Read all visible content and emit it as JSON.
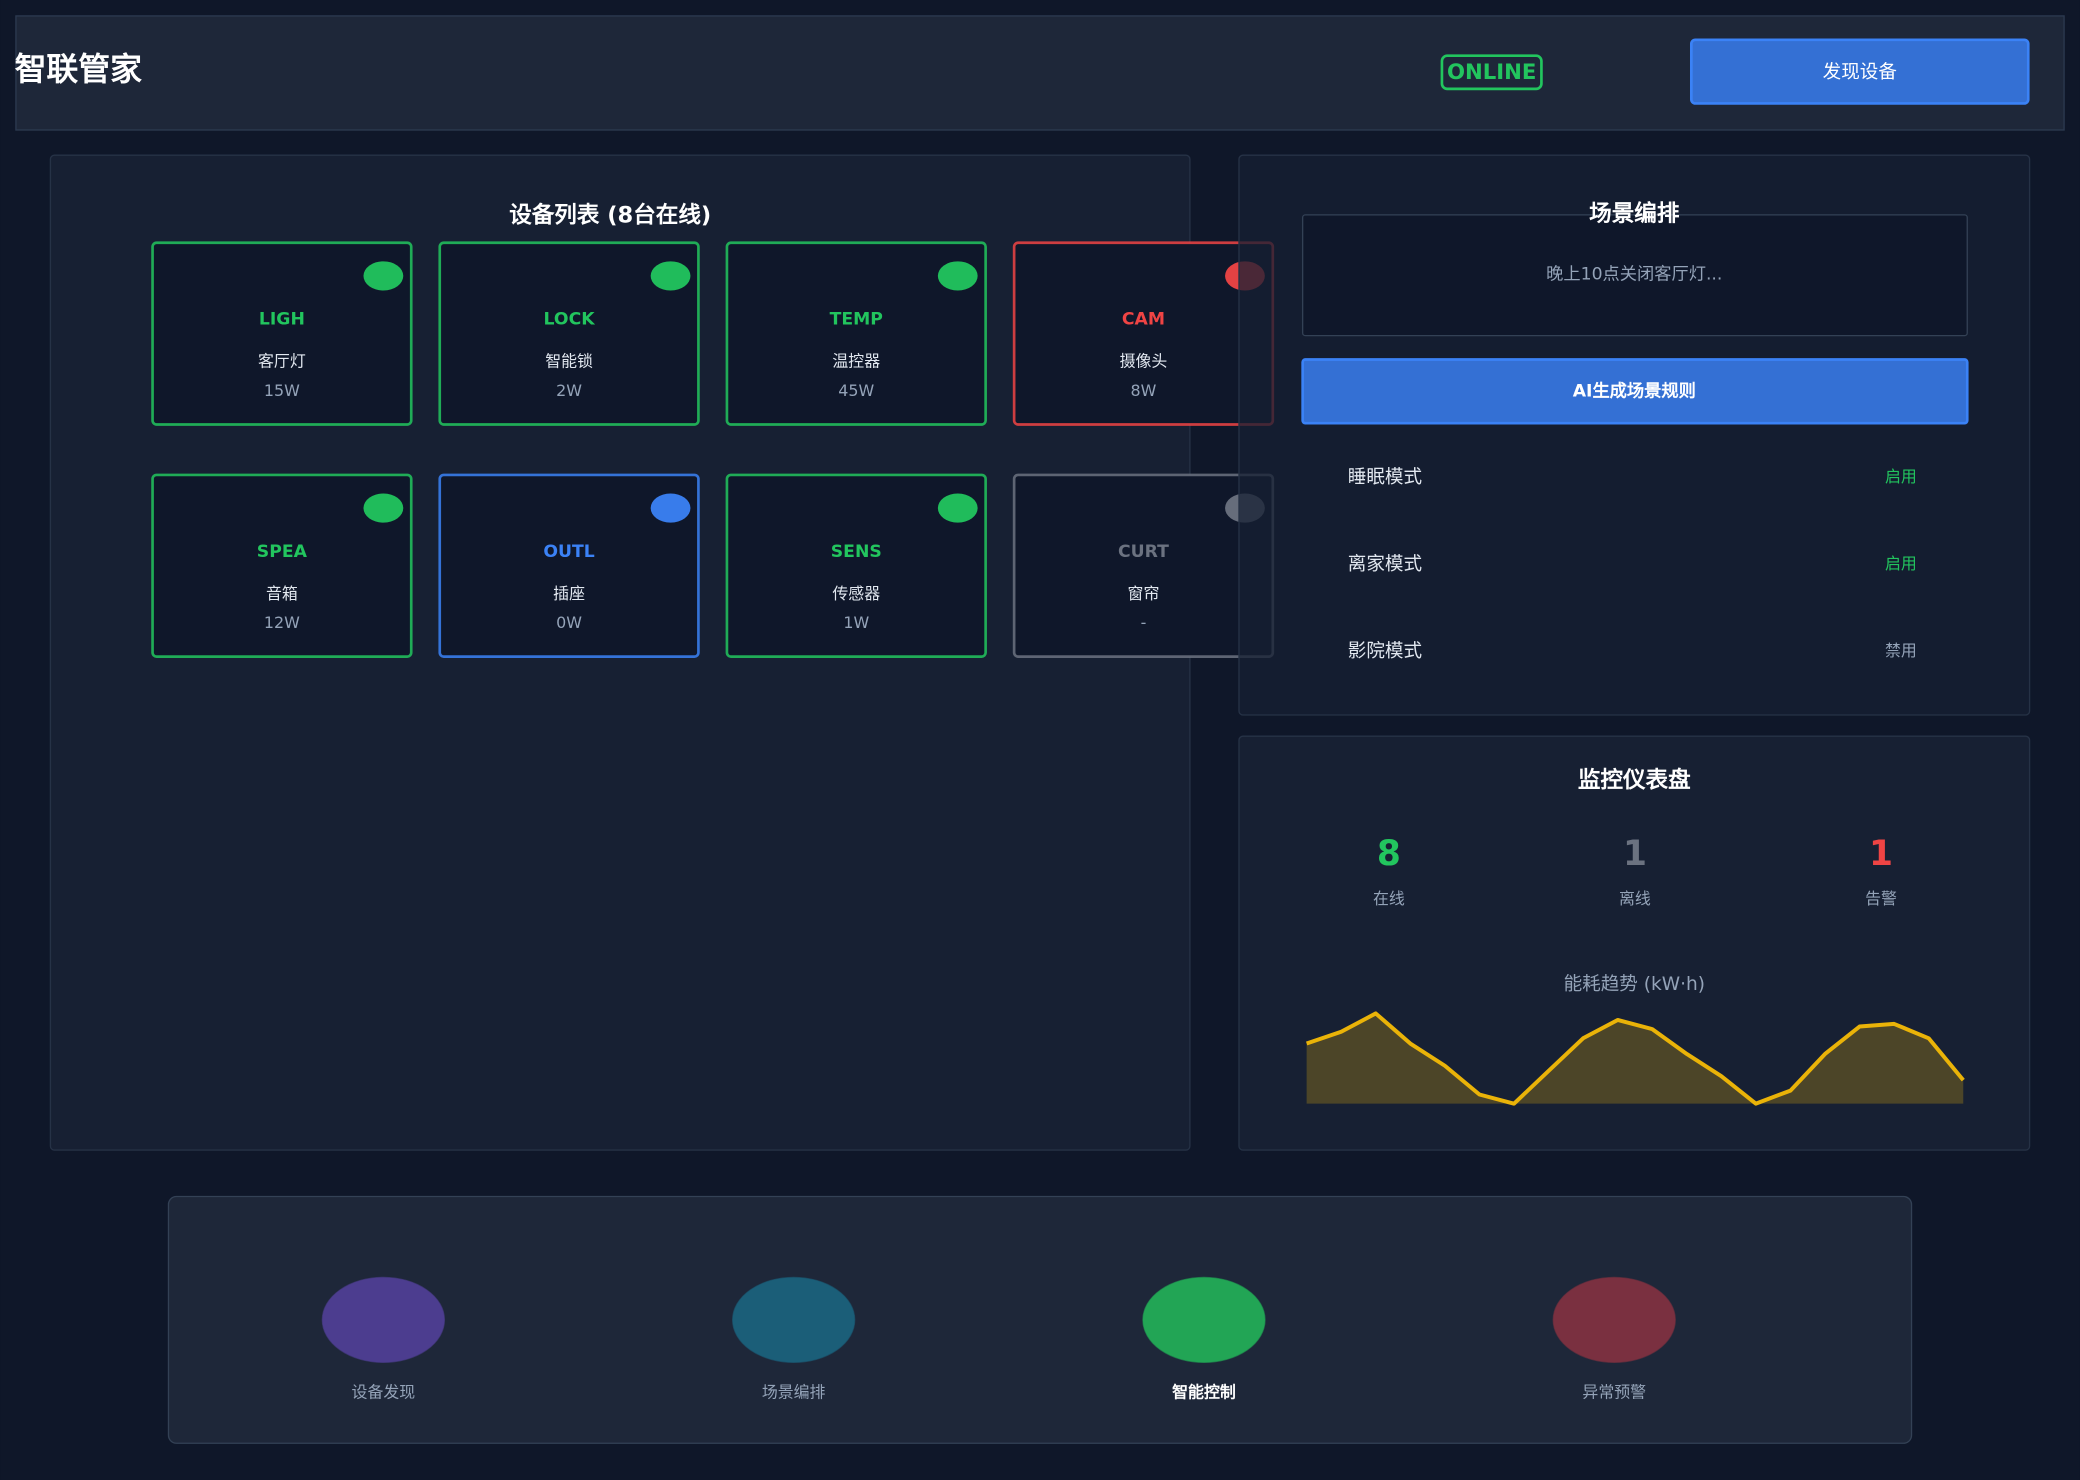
{
  "header": {
    "title": "智联管家",
    "status": "ONLINE",
    "button": "发现设备"
  },
  "devices": {
    "title": "设备列表 (8台在线)",
    "items": [
      {
        "code": "LIGH",
        "name": "客厅灯",
        "power": "15W",
        "color": "#22c55e"
      },
      {
        "code": "LOCK",
        "name": "智能锁",
        "power": "2W",
        "color": "#22c55e"
      },
      {
        "code": "TEMP",
        "name": "温控器",
        "power": "45W",
        "color": "#22c55e"
      },
      {
        "code": "CAM",
        "name": "摄像头",
        "power": "8W",
        "color": "#ef4444"
      },
      {
        "code": "SPEA",
        "name": "音箱",
        "power": "12W",
        "color": "#22c55e"
      },
      {
        "code": "OUTL",
        "name": "插座",
        "power": "0W",
        "color": "#3b82f6"
      },
      {
        "code": "SENS",
        "name": "传感器",
        "power": "1W",
        "color": "#22c55e"
      },
      {
        "code": "CURT",
        "name": "窗帘",
        "power": "-",
        "color": "#6b7280"
      }
    ]
  },
  "scenes": {
    "title": "场景编排",
    "placeholder": "晚上10点关闭客厅灯...",
    "button": "AI生成场景规则",
    "items": [
      {
        "name": "睡眠模式",
        "status": "启用",
        "color": "#22c55e"
      },
      {
        "name": "离家模式",
        "status": "启用",
        "color": "#22c55e"
      },
      {
        "name": "影院模式",
        "status": "禁用",
        "color": "#94a3b8"
      }
    ]
  },
  "monitor": {
    "title": "监控仪表盘",
    "stats": [
      {
        "value": 8,
        "label": "在线",
        "color": "#22c55e"
      },
      {
        "value": 1,
        "label": "离线",
        "color": "#6b7280"
      },
      {
        "value": 1,
        "label": "告警",
        "color": "#ef4444"
      }
    ],
    "chart": {
      "type": "area",
      "title": "能耗趋势 (kW·h)",
      "color": "#eab308",
      "values": [
        46,
        55,
        69,
        46,
        29,
        7,
        0,
        25,
        50,
        64,
        57,
        38,
        21,
        0,
        10,
        38,
        59,
        61,
        50,
        18
      ],
      "ylim": [
        0,
        70
      ]
    }
  },
  "nav": [
    {
      "label": "设备发现",
      "color": "#4c3d8f"
    },
    {
      "label": "场景编排",
      "color": "#1b5e78"
    },
    {
      "label": "智能控制",
      "color": "#22a555"
    },
    {
      "label": "异常预警",
      "color": "#7a3040"
    }
  ]
}
